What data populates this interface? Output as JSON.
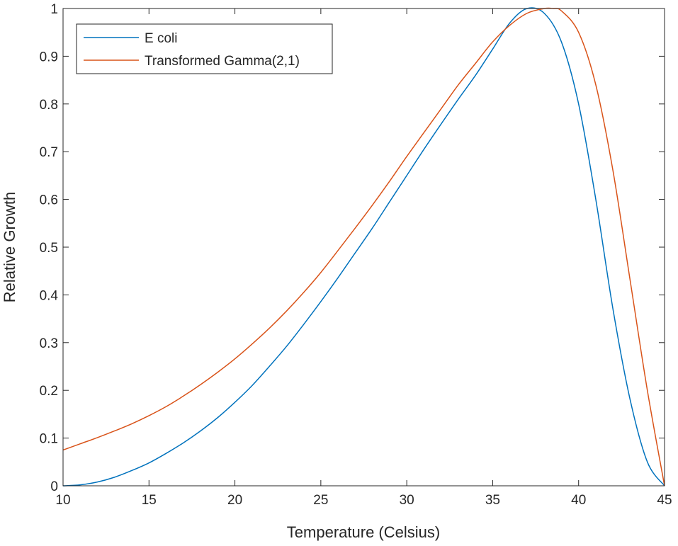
{
  "chart_data": {
    "type": "line",
    "title": "",
    "xlabel": "Temperature (Celsius)",
    "ylabel": "Relative Growth",
    "xlim": [
      10,
      45
    ],
    "ylim": [
      0,
      1
    ],
    "xticks": [
      "10",
      "15",
      "20",
      "25",
      "30",
      "35",
      "40",
      "45"
    ],
    "yticks": [
      "0",
      "0.1",
      "0.2",
      "0.3",
      "0.4",
      "0.5",
      "0.6",
      "0.7",
      "0.8",
      "0.9",
      "1"
    ],
    "grid": false,
    "legend_position": "top-left",
    "series": [
      {
        "name": "E coli",
        "color": "#0072BD",
        "x": [
          10,
          11,
          12,
          13,
          14,
          15,
          16,
          17,
          18,
          19,
          20,
          21,
          22,
          23,
          24,
          25,
          26,
          27,
          28,
          29,
          30,
          31,
          32,
          33,
          34,
          35,
          36,
          37,
          38,
          39,
          40,
          41,
          42,
          43,
          44,
          45
        ],
        "y": [
          0.0,
          0.002,
          0.008,
          0.018,
          0.032,
          0.048,
          0.068,
          0.09,
          0.115,
          0.143,
          0.175,
          0.21,
          0.25,
          0.292,
          0.338,
          0.386,
          0.436,
          0.488,
          0.54,
          0.595,
          0.65,
          0.705,
          0.758,
          0.81,
          0.86,
          0.915,
          0.97,
          1.0,
          0.99,
          0.93,
          0.8,
          0.6,
          0.37,
          0.18,
          0.05,
          0.0
        ]
      },
      {
        "name": "Transformed Gamma(2,1)",
        "color": "#D95319",
        "x": [
          10,
          11,
          12,
          13,
          14,
          15,
          16,
          17,
          18,
          19,
          20,
          21,
          22,
          23,
          24,
          25,
          26,
          27,
          28,
          29,
          30,
          31,
          32,
          33,
          34,
          35,
          36,
          37,
          38,
          38.5,
          39,
          40,
          41,
          42,
          43,
          44,
          45
        ],
        "y": [
          0.075,
          0.088,
          0.101,
          0.115,
          0.13,
          0.147,
          0.166,
          0.188,
          0.212,
          0.238,
          0.266,
          0.297,
          0.33,
          0.366,
          0.405,
          0.447,
          0.493,
          0.54,
          0.588,
          0.638,
          0.69,
          0.74,
          0.79,
          0.84,
          0.885,
          0.93,
          0.965,
          0.99,
          1.0,
          1.0,
          0.995,
          0.95,
          0.84,
          0.66,
          0.43,
          0.2,
          0.0
        ]
      }
    ]
  }
}
